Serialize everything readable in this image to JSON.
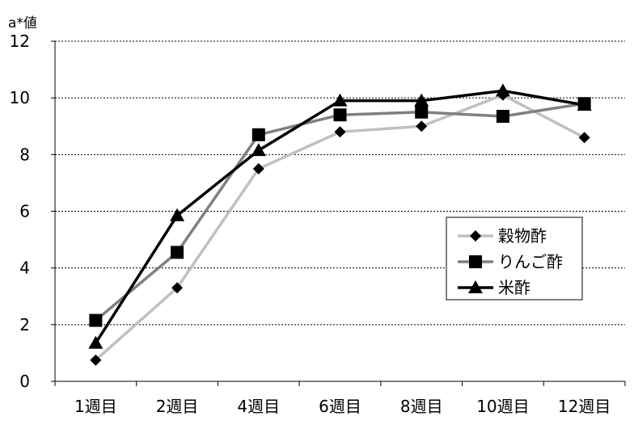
{
  "chart_data": {
    "type": "line",
    "title": "",
    "xlabel": "",
    "ylabel": "a*値",
    "ylim": [
      0,
      12
    ],
    "yticks": [
      0,
      2,
      4,
      6,
      8,
      10,
      12
    ],
    "grid": "horizontal dashed",
    "legend_position": "right",
    "categories": [
      "1週目",
      "2週目",
      "4週目",
      "6週目",
      "8週目",
      "10週目",
      "12週目"
    ],
    "series": [
      {
        "name": "穀物酢",
        "marker": "diamond",
        "color": "#c0c0c0",
        "values": [
          0.75,
          3.3,
          7.5,
          8.8,
          9.0,
          10.1,
          8.6
        ]
      },
      {
        "name": "りんご酢",
        "marker": "square",
        "color": "#808080",
        "values": [
          2.15,
          4.55,
          8.7,
          9.4,
          9.5,
          9.35,
          9.8
        ]
      },
      {
        "name": "米酢",
        "marker": "triangle",
        "color": "#000000",
        "values": [
          1.35,
          5.85,
          8.15,
          9.9,
          9.9,
          10.25,
          9.75
        ]
      }
    ]
  }
}
